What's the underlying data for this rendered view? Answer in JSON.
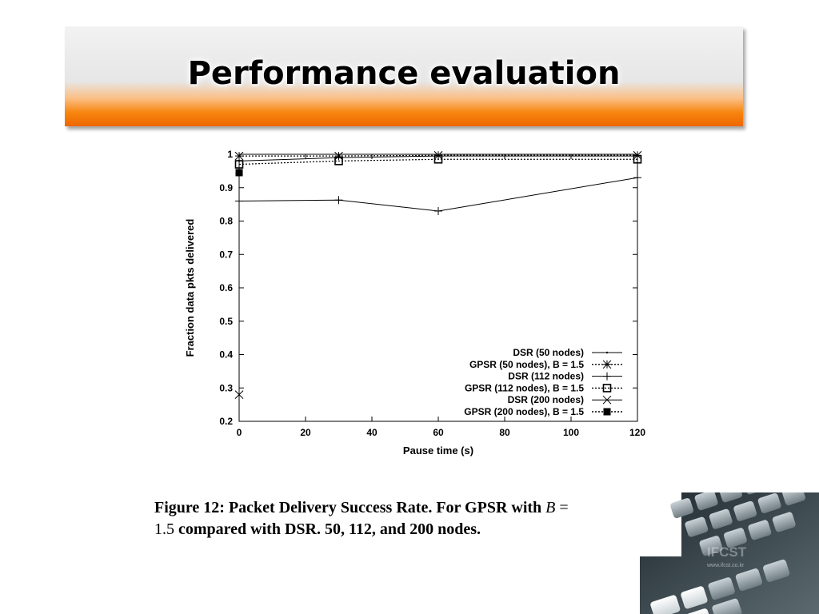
{
  "slide": {
    "title": "Performance evaluation"
  },
  "caption": {
    "line1_text": "Figure 12:  Packet Delivery Success Rate.  For GPSR with ",
    "line1_var": "B",
    "line1_eq": " =",
    "line2_num": "1.5",
    "line2_text": " compared with DSR. 50, 112, and 200 nodes."
  },
  "watermark": {
    "brand": "IFCST",
    "url": "www.ifcst.co.kr"
  },
  "chart_data": {
    "type": "line",
    "xlabel": "Pause time (s)",
    "ylabel": "Fraction data pkts delivered",
    "xlim": [
      0,
      120
    ],
    "ylim": [
      0.2,
      1
    ],
    "xticks": [
      "0",
      "20",
      "40",
      "60",
      "80",
      "100",
      "120"
    ],
    "yticks": [
      "0.2",
      "0.3",
      "0.4",
      "0.5",
      "0.6",
      "0.7",
      "0.8",
      "0.9",
      "1"
    ],
    "grid": false,
    "legend_position": "bottom-right",
    "x": [
      0,
      30,
      60,
      120
    ],
    "series": [
      {
        "name": "DSR (50 nodes)",
        "marker": "dot",
        "dash": "solid",
        "x": [
          0,
          30,
          60,
          120
        ],
        "values": [
          0.98,
          0.99,
          0.995,
          0.995
        ]
      },
      {
        "name": "GPSR (50 nodes), B = 1.5",
        "marker": "asterisk",
        "dash": "dotted",
        "x": [
          0,
          30,
          60,
          120
        ],
        "values": [
          0.995,
          0.995,
          0.997,
          0.997
        ]
      },
      {
        "name": "DSR (112 nodes)",
        "marker": "plus",
        "dash": "solid",
        "x": [
          0,
          30,
          60,
          120
        ],
        "values": [
          0.86,
          0.863,
          0.83,
          0.93
        ]
      },
      {
        "name": "GPSR (112 nodes), B = 1.5",
        "marker": "square-open",
        "dash": "dotted",
        "x": [
          0,
          30,
          60,
          120
        ],
        "values": [
          0.97,
          0.98,
          0.985,
          0.985
        ]
      },
      {
        "name": "DSR (200 nodes)",
        "marker": "cross",
        "dash": "solid",
        "x": [
          0
        ],
        "values": [
          0.28
        ]
      },
      {
        "name": "GPSR (200 nodes), B = 1.5",
        "marker": "square-filled",
        "dash": "dotted",
        "x": [
          0
        ],
        "values": [
          0.945
        ]
      }
    ]
  }
}
